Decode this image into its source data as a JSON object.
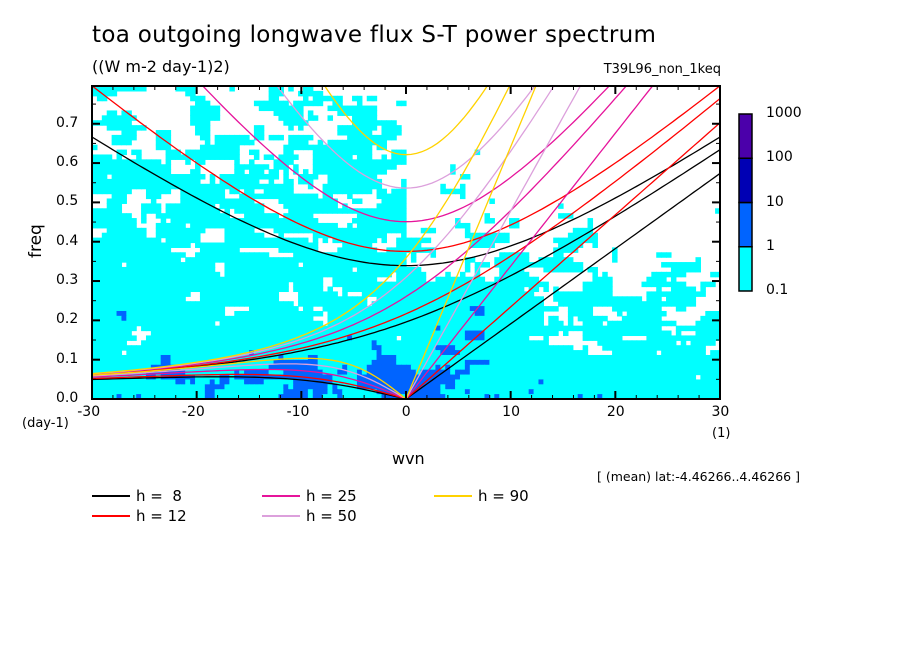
{
  "chart_data": {
    "type": "heatmap",
    "title": "toa outgoing longwave flux S-T power spectrum",
    "subtitle": "((W m-2 day-1)2)",
    "run_label": "T39L96_non_1keq",
    "region_note": "[ (mean) lat:-4.46266..4.46266 ]",
    "xlabel": "wvn",
    "ylabel": "freq",
    "x_unit": "(1)",
    "y_unit": "(day-1)",
    "xlim": [
      -30,
      30
    ],
    "ylim": [
      0.0,
      0.796
    ],
    "x_ticks": [
      "-30",
      "-20",
      "-10",
      "0",
      "10",
      "20",
      "30"
    ],
    "x_tick_values": [
      -30,
      -20,
      -10,
      0,
      10,
      20,
      30
    ],
    "y_ticks": [
      "0.0",
      "0.1",
      "0.2",
      "0.3",
      "0.4",
      "0.5",
      "0.6",
      "0.7"
    ],
    "y_tick_values": [
      0.0,
      0.1,
      0.2,
      0.3,
      0.4,
      0.5,
      0.6,
      0.7
    ],
    "colorbar": {
      "levels": [
        "0.1",
        "1",
        "10",
        "100",
        "1000"
      ],
      "colors": [
        "#00ffff",
        "#0064ff",
        "#0000b4",
        "#4b00aa"
      ]
    },
    "dispersion_curves": {
      "description_types": [
        "kelvin",
        "n1_er",
        "n1_ig",
        "mrg",
        "n0_eig"
      ],
      "series": [
        {
          "name": "h =  8",
          "h": 8,
          "color": "#000000"
        },
        {
          "name": "h = 12",
          "h": 12,
          "color": "#ff0000"
        },
        {
          "name": "h = 25",
          "h": 25,
          "color": "#e6149b"
        },
        {
          "name": "h = 50",
          "h": 50,
          "color": "#dca0dc"
        },
        {
          "name": "h = 90",
          "h": 90,
          "color": "#ffd200"
        }
      ]
    }
  }
}
